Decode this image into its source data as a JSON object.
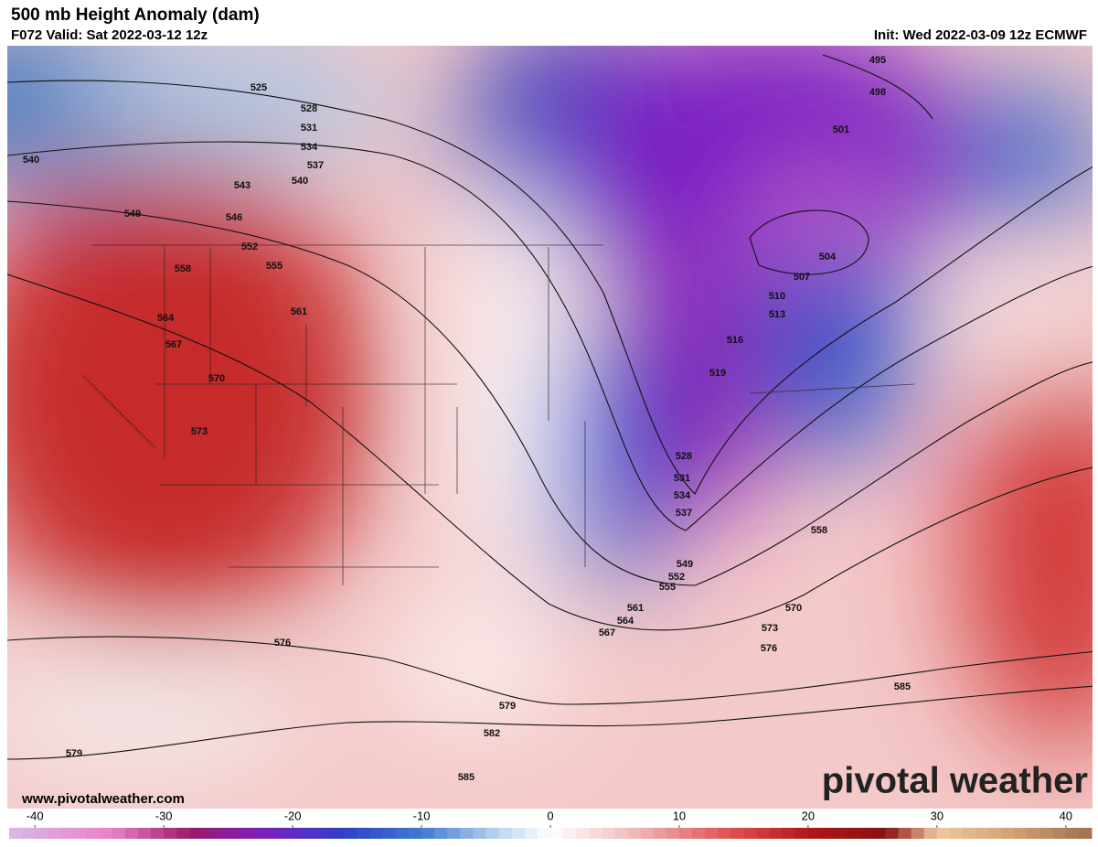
{
  "header": {
    "title": "500 mb Height Anomaly (dam)",
    "valid": "F072 Valid: Sat 2022-03-12 12z",
    "init": "Init: Wed 2022-03-09 12z ECMWF"
  },
  "contour_labels": [
    525,
    528,
    531,
    534,
    537,
    540,
    543,
    546,
    549,
    552,
    555,
    558,
    561,
    564,
    567,
    570,
    573,
    576,
    579,
    582,
    585,
    579,
    540,
    495,
    498,
    501,
    504,
    507,
    510,
    513,
    516,
    519,
    528,
    531,
    534,
    537,
    549,
    552,
    555,
    561,
    564,
    567,
    570,
    573,
    576,
    558,
    585
  ],
  "footer": {
    "url": "www.pivotalweather.com",
    "logo": "pivotal weather"
  },
  "colorbar": {
    "ticks": [
      -40,
      -30,
      -20,
      -10,
      0,
      10,
      20,
      30,
      40
    ],
    "lim": [
      -42,
      42
    ]
  }
}
